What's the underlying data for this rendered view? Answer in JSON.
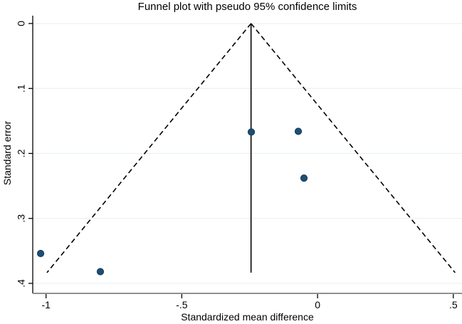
{
  "chart_data": {
    "type": "scatter",
    "variant": "funnel-plot",
    "title": "Funnel plot with pseudo 95% confidence limits",
    "xlabel": "Standardized mean difference",
    "ylabel": "Standard error",
    "xlim": [
      -1.049,
      0.532
    ],
    "ylim": [
      0,
      0.4154
    ],
    "y_axis_reversed": true,
    "grid": true,
    "legend": "none",
    "x_ticks": [
      {
        "value": -1,
        "label": "-1"
      },
      {
        "value": -0.5,
        "label": "-.5"
      },
      {
        "value": 0,
        "label": "0"
      },
      {
        "value": 0.5,
        "label": ".5"
      }
    ],
    "y_ticks": [
      {
        "value": 0,
        "label": "0"
      },
      {
        "value": 0.1,
        "label": ".1"
      },
      {
        "value": 0.2,
        "label": ".2"
      },
      {
        "value": 0.3,
        "label": ".3"
      },
      {
        "value": 0.4,
        "label": ".4"
      }
    ],
    "points": [
      {
        "smd": -1.02,
        "se": 0.354
      },
      {
        "smd": -0.8,
        "se": 0.382
      },
      {
        "smd": -0.244,
        "se": 0.167
      },
      {
        "smd": -0.071,
        "se": 0.166
      },
      {
        "smd": -0.05,
        "se": 0.238
      }
    ],
    "pooled_effect_smd": -0.245,
    "confidence_z": 1.96,
    "funnel_bottom_se": 0.3835,
    "colors": {
      "marker": "#1d4e74",
      "marker_edge": "#163c5b",
      "grid": "#e9f1f2",
      "line": "#000000",
      "x_axis": "#909090",
      "y_axis": "#000000",
      "background": "#ffffff"
    }
  }
}
